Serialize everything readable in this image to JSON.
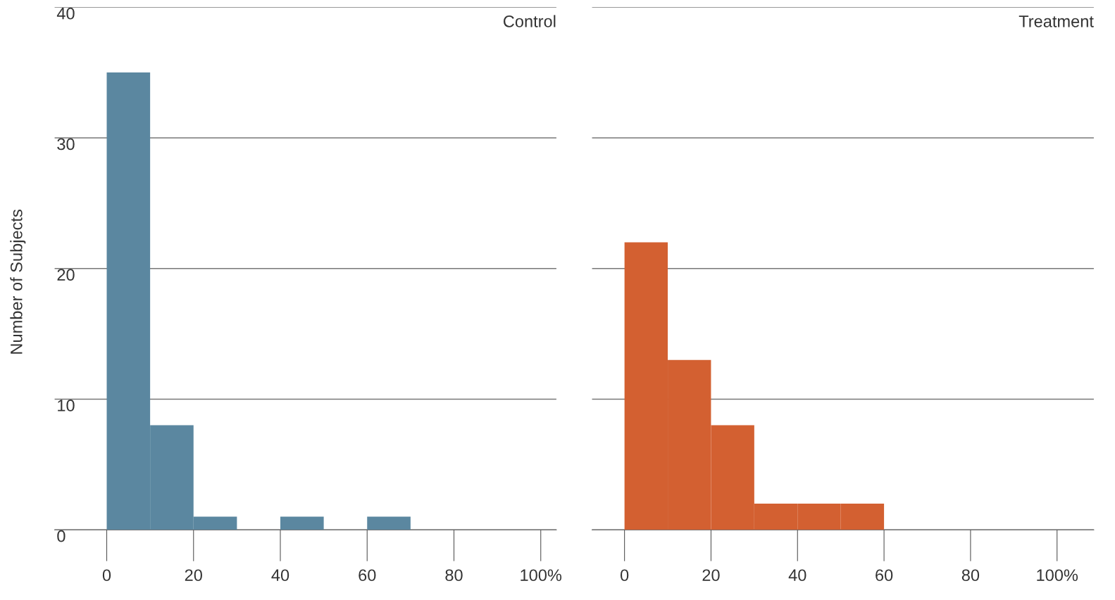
{
  "chart_data": [
    {
      "type": "histogram",
      "title": "Control",
      "ylabel": "Number of Subjects",
      "bins": [
        0,
        10,
        20,
        30,
        40,
        50,
        60,
        70,
        80,
        90,
        100
      ],
      "values": [
        35,
        8,
        1,
        0,
        1,
        0,
        1,
        0,
        0,
        0
      ],
      "color": "#5b87a0",
      "xlim": [
        -12,
        103.6
      ],
      "xticks": [
        0,
        20,
        40,
        60,
        80,
        {
          "value": 100,
          "label": "100%"
        }
      ],
      "ylim": [
        0,
        40
      ],
      "yticks": [
        0,
        10,
        20,
        30,
        40
      ],
      "grid": "y"
    },
    {
      "type": "histogram",
      "title": "Treatment",
      "bins": [
        0,
        10,
        20,
        30,
        40,
        50,
        60,
        70,
        80,
        90,
        100
      ],
      "values": [
        22,
        13,
        8,
        2,
        2,
        2,
        0,
        0,
        0,
        0
      ],
      "color": "#d36031",
      "xlim": [
        -7.5,
        108.5
      ],
      "xticks": [
        0,
        20,
        40,
        60,
        80,
        {
          "value": 100,
          "label": "100%"
        }
      ],
      "ylim": [
        0,
        40
      ],
      "yticks": [
        0,
        10,
        20,
        30,
        40
      ],
      "grid": "y",
      "tick_labels": "x"
    }
  ]
}
